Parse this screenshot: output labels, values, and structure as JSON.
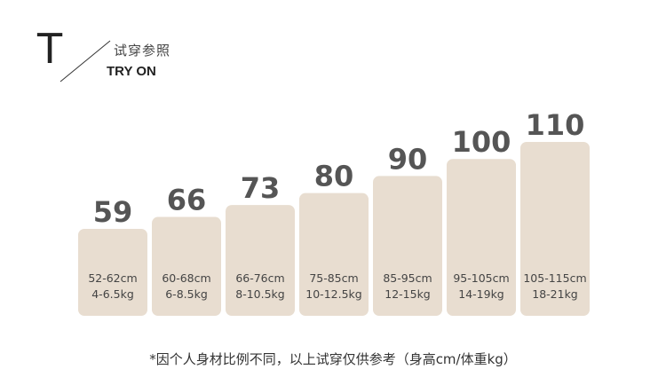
{
  "header": {
    "letter": "T",
    "title_cn": "试穿参照",
    "title_en": "TRY ON"
  },
  "chart_data": {
    "type": "bar",
    "categories": [
      "59",
      "66",
      "73",
      "80",
      "90",
      "100",
      "110"
    ],
    "height_ranges": [
      "52-62cm",
      "60-68cm",
      "66-76cm",
      "75-85cm",
      "85-95cm",
      "95-105cm",
      "105-115cm"
    ],
    "weight_ranges": [
      "4-6.5kg",
      "6-8.5kg",
      "8-10.5kg",
      "10-12.5kg",
      "12-15kg",
      "14-19kg",
      "18-21kg"
    ],
    "values": [
      59,
      66,
      73,
      80,
      90,
      100,
      110
    ],
    "ylim": [
      0,
      110
    ],
    "bar_color": "#e8ddd0",
    "grid": false,
    "title": "",
    "xlabel": "",
    "ylabel": ""
  },
  "footnote": "*因个人身材比例不同，以上试穿仅供参考（身高cm/体重kg）"
}
